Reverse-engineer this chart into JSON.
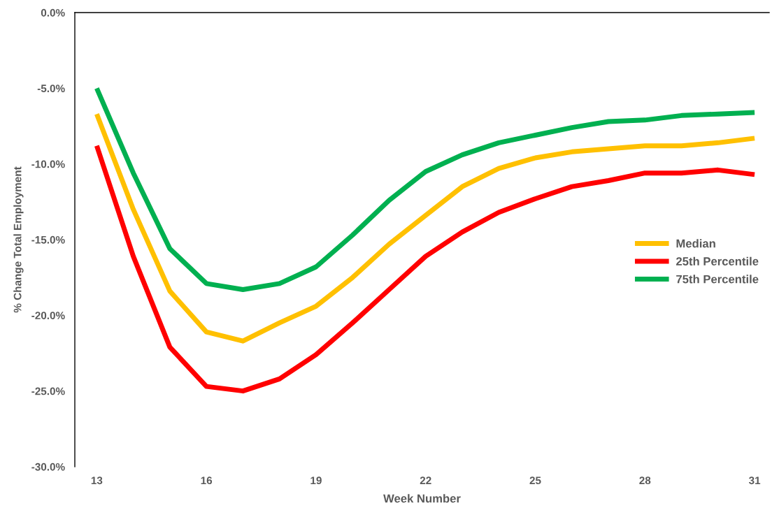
{
  "chart_data": {
    "type": "line",
    "xlabel": "Week Number",
    "ylabel": "% Change Total Employment",
    "x": [
      13,
      14,
      15,
      16,
      17,
      18,
      19,
      20,
      21,
      22,
      23,
      24,
      25,
      26,
      27,
      28,
      29,
      30,
      31
    ],
    "series": [
      {
        "name": "Median",
        "color": "#ffc000",
        "values": [
          -6.7,
          -13.0,
          -18.4,
          -21.1,
          -21.7,
          -20.5,
          -19.4,
          -17.5,
          -15.3,
          -13.4,
          -11.5,
          -10.3,
          -9.6,
          -9.2,
          -9.0,
          -8.8,
          -8.8,
          -8.6,
          -8.3
        ]
      },
      {
        "name": "25th Percentile",
        "color": "#ff0000",
        "values": [
          -8.8,
          -16.1,
          -22.1,
          -24.7,
          -25.0,
          -24.2,
          -22.6,
          -20.5,
          -18.3,
          -16.1,
          -14.5,
          -13.2,
          -12.3,
          -11.5,
          -11.1,
          -10.6,
          -10.6,
          -10.4,
          -10.7
        ]
      },
      {
        "name": "75th Percentile",
        "color": "#00b050",
        "values": [
          -5.0,
          -10.6,
          -15.6,
          -17.9,
          -18.3,
          -17.9,
          -16.8,
          -14.7,
          -12.4,
          -10.5,
          -9.4,
          -8.6,
          -8.1,
          -7.6,
          -7.2,
          -7.1,
          -6.8,
          -6.7,
          -6.6
        ]
      }
    ],
    "xlim": [
      12.4,
      31.4
    ],
    "xticks": [
      13,
      16,
      19,
      22,
      25,
      28,
      31
    ],
    "ylim": [
      -30,
      0
    ],
    "yticks": [
      {
        "value": 0,
        "label": "0.0%"
      },
      {
        "value": -5,
        "label": "-5.0%"
      },
      {
        "value": -10,
        "label": "-10.0%"
      },
      {
        "value": -15,
        "label": "-15.0%"
      },
      {
        "value": -20,
        "label": "-20.0%"
      },
      {
        "value": -25,
        "label": "-25.0%"
      },
      {
        "value": -30,
        "label": "-30.0%"
      }
    ],
    "grid": false,
    "legend": "right",
    "marker": "none",
    "line_style": "solid"
  }
}
